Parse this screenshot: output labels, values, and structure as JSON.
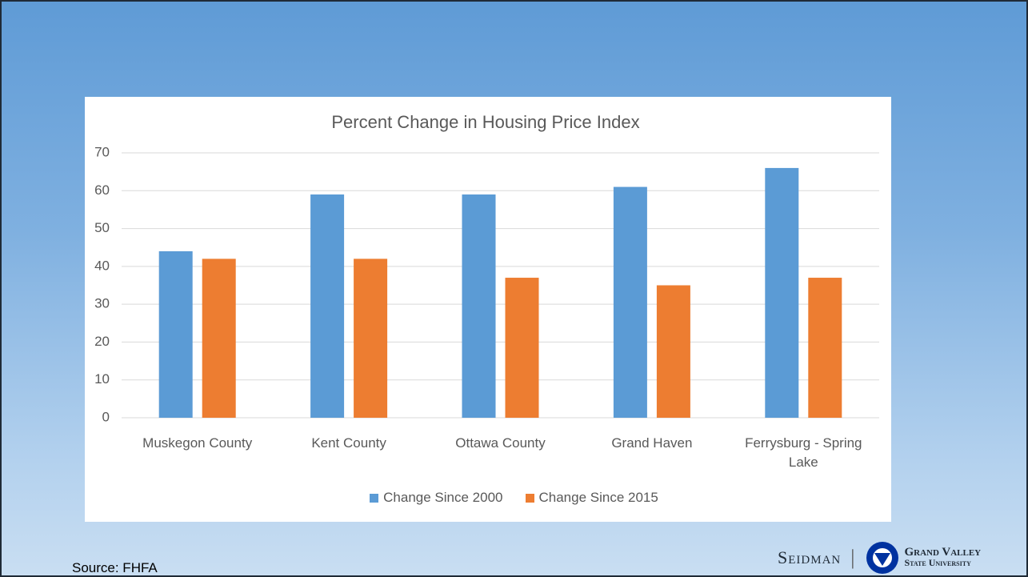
{
  "chart_data": {
    "type": "bar",
    "title": "Percent Change in Housing Price Index",
    "categories": [
      "Muskegon County",
      "Kent County",
      "Ottawa County",
      "Grand Haven",
      "Ferrysburg - Spring Lake"
    ],
    "series": [
      {
        "name": "Change Since 2000",
        "color": "#5b9bd5",
        "values": [
          44,
          59,
          59,
          61,
          66
        ]
      },
      {
        "name": "Change Since 2015",
        "color": "#ed7d31",
        "values": [
          42,
          42,
          37,
          35,
          37
        ]
      }
    ],
    "ylim": [
      0,
      70
    ],
    "yticks": [
      0,
      10,
      20,
      30,
      40,
      50,
      60,
      70
    ],
    "grid": true,
    "legend": "bottom"
  },
  "source": "Source: FHFA",
  "logo": {
    "left": "Seidman",
    "right_top": "Grand Valley",
    "right_bottom": "State University"
  }
}
